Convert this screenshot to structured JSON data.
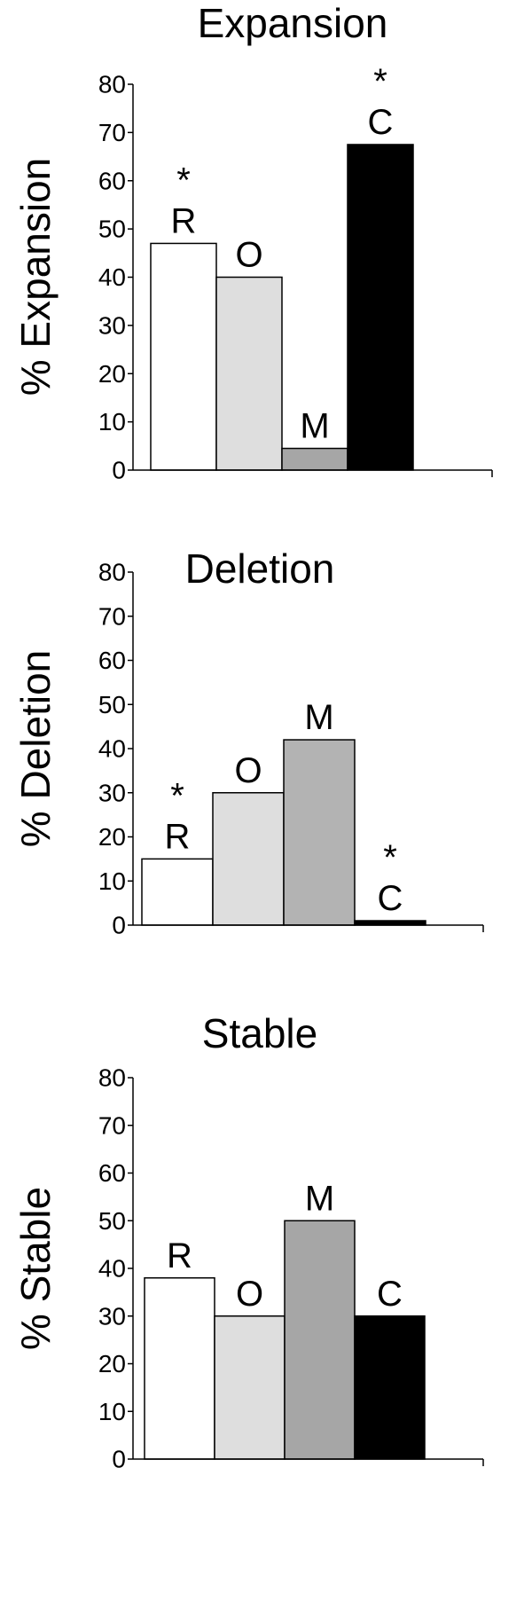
{
  "chart_data": [
    {
      "type": "bar",
      "title": "Expansion",
      "ylabel": "% Expansion",
      "ylim": [
        0,
        80
      ],
      "yticks": [
        0,
        10,
        20,
        30,
        40,
        50,
        60,
        70,
        80
      ],
      "categories": [
        "R",
        "O",
        "M",
        "C"
      ],
      "values": [
        47,
        40,
        4.5,
        67.5
      ],
      "significant": [
        true,
        false,
        false,
        true
      ],
      "colors": [
        "#ffffff",
        "#dedede",
        "#a6a6a6",
        "#000000"
      ],
      "significance_marker": "*",
      "grid": false
    },
    {
      "type": "bar",
      "title": "Deletion",
      "ylabel": "% Deletion",
      "ylim": [
        0,
        80
      ],
      "yticks": [
        0,
        10,
        20,
        30,
        40,
        50,
        60,
        70,
        80
      ],
      "categories": [
        "R",
        "O",
        "M",
        "C"
      ],
      "values": [
        15,
        30,
        42,
        1
      ],
      "significant": [
        true,
        false,
        false,
        true
      ],
      "colors": [
        "#ffffff",
        "#dedede",
        "#b3b3b3",
        "#000000"
      ],
      "significance_marker": "*",
      "grid": false
    },
    {
      "type": "bar",
      "title": "Stable",
      "ylabel": "% Stable",
      "ylim": [
        0,
        80
      ],
      "yticks": [
        0,
        10,
        20,
        30,
        40,
        50,
        60,
        70,
        80
      ],
      "categories": [
        "R",
        "O",
        "M",
        "C"
      ],
      "values": [
        38,
        30,
        50,
        30
      ],
      "significant": [
        false,
        false,
        false,
        false
      ],
      "colors": [
        "#ffffff",
        "#dedede",
        "#a6a6a6",
        "#000000"
      ],
      "significance_marker": "*",
      "grid": false
    }
  ]
}
